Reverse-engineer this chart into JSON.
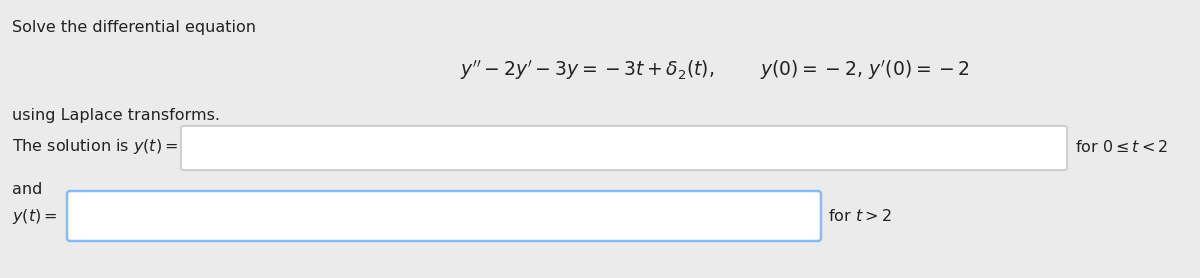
{
  "bg_color": "#ebebeb",
  "text_color": "#222222",
  "title_text": "Solve the differential equation",
  "subtitle_text": "using Laplace transforms.",
  "eq_part1": "$y'' - 2y' - 3y = -3t + \\delta_2(t),$",
  "eq_part2": "$y(0) = -2,\\, y'(0) = -2$",
  "solution_label": "The solution is $y(t) =$",
  "and_label": "and",
  "yt_label": "$y(t) =$",
  "for_0t2": "for $0 \\leq t < 2$",
  "for_t2": "for $t > 2$",
  "box1_facecolor": "#ffffff",
  "box1_edgecolor": "#c0c0c0",
  "box2_facecolor": "#ffffff",
  "box2_edgecolor": "#88bbee",
  "font_size_main": 11.5,
  "font_size_eq": 13.5
}
